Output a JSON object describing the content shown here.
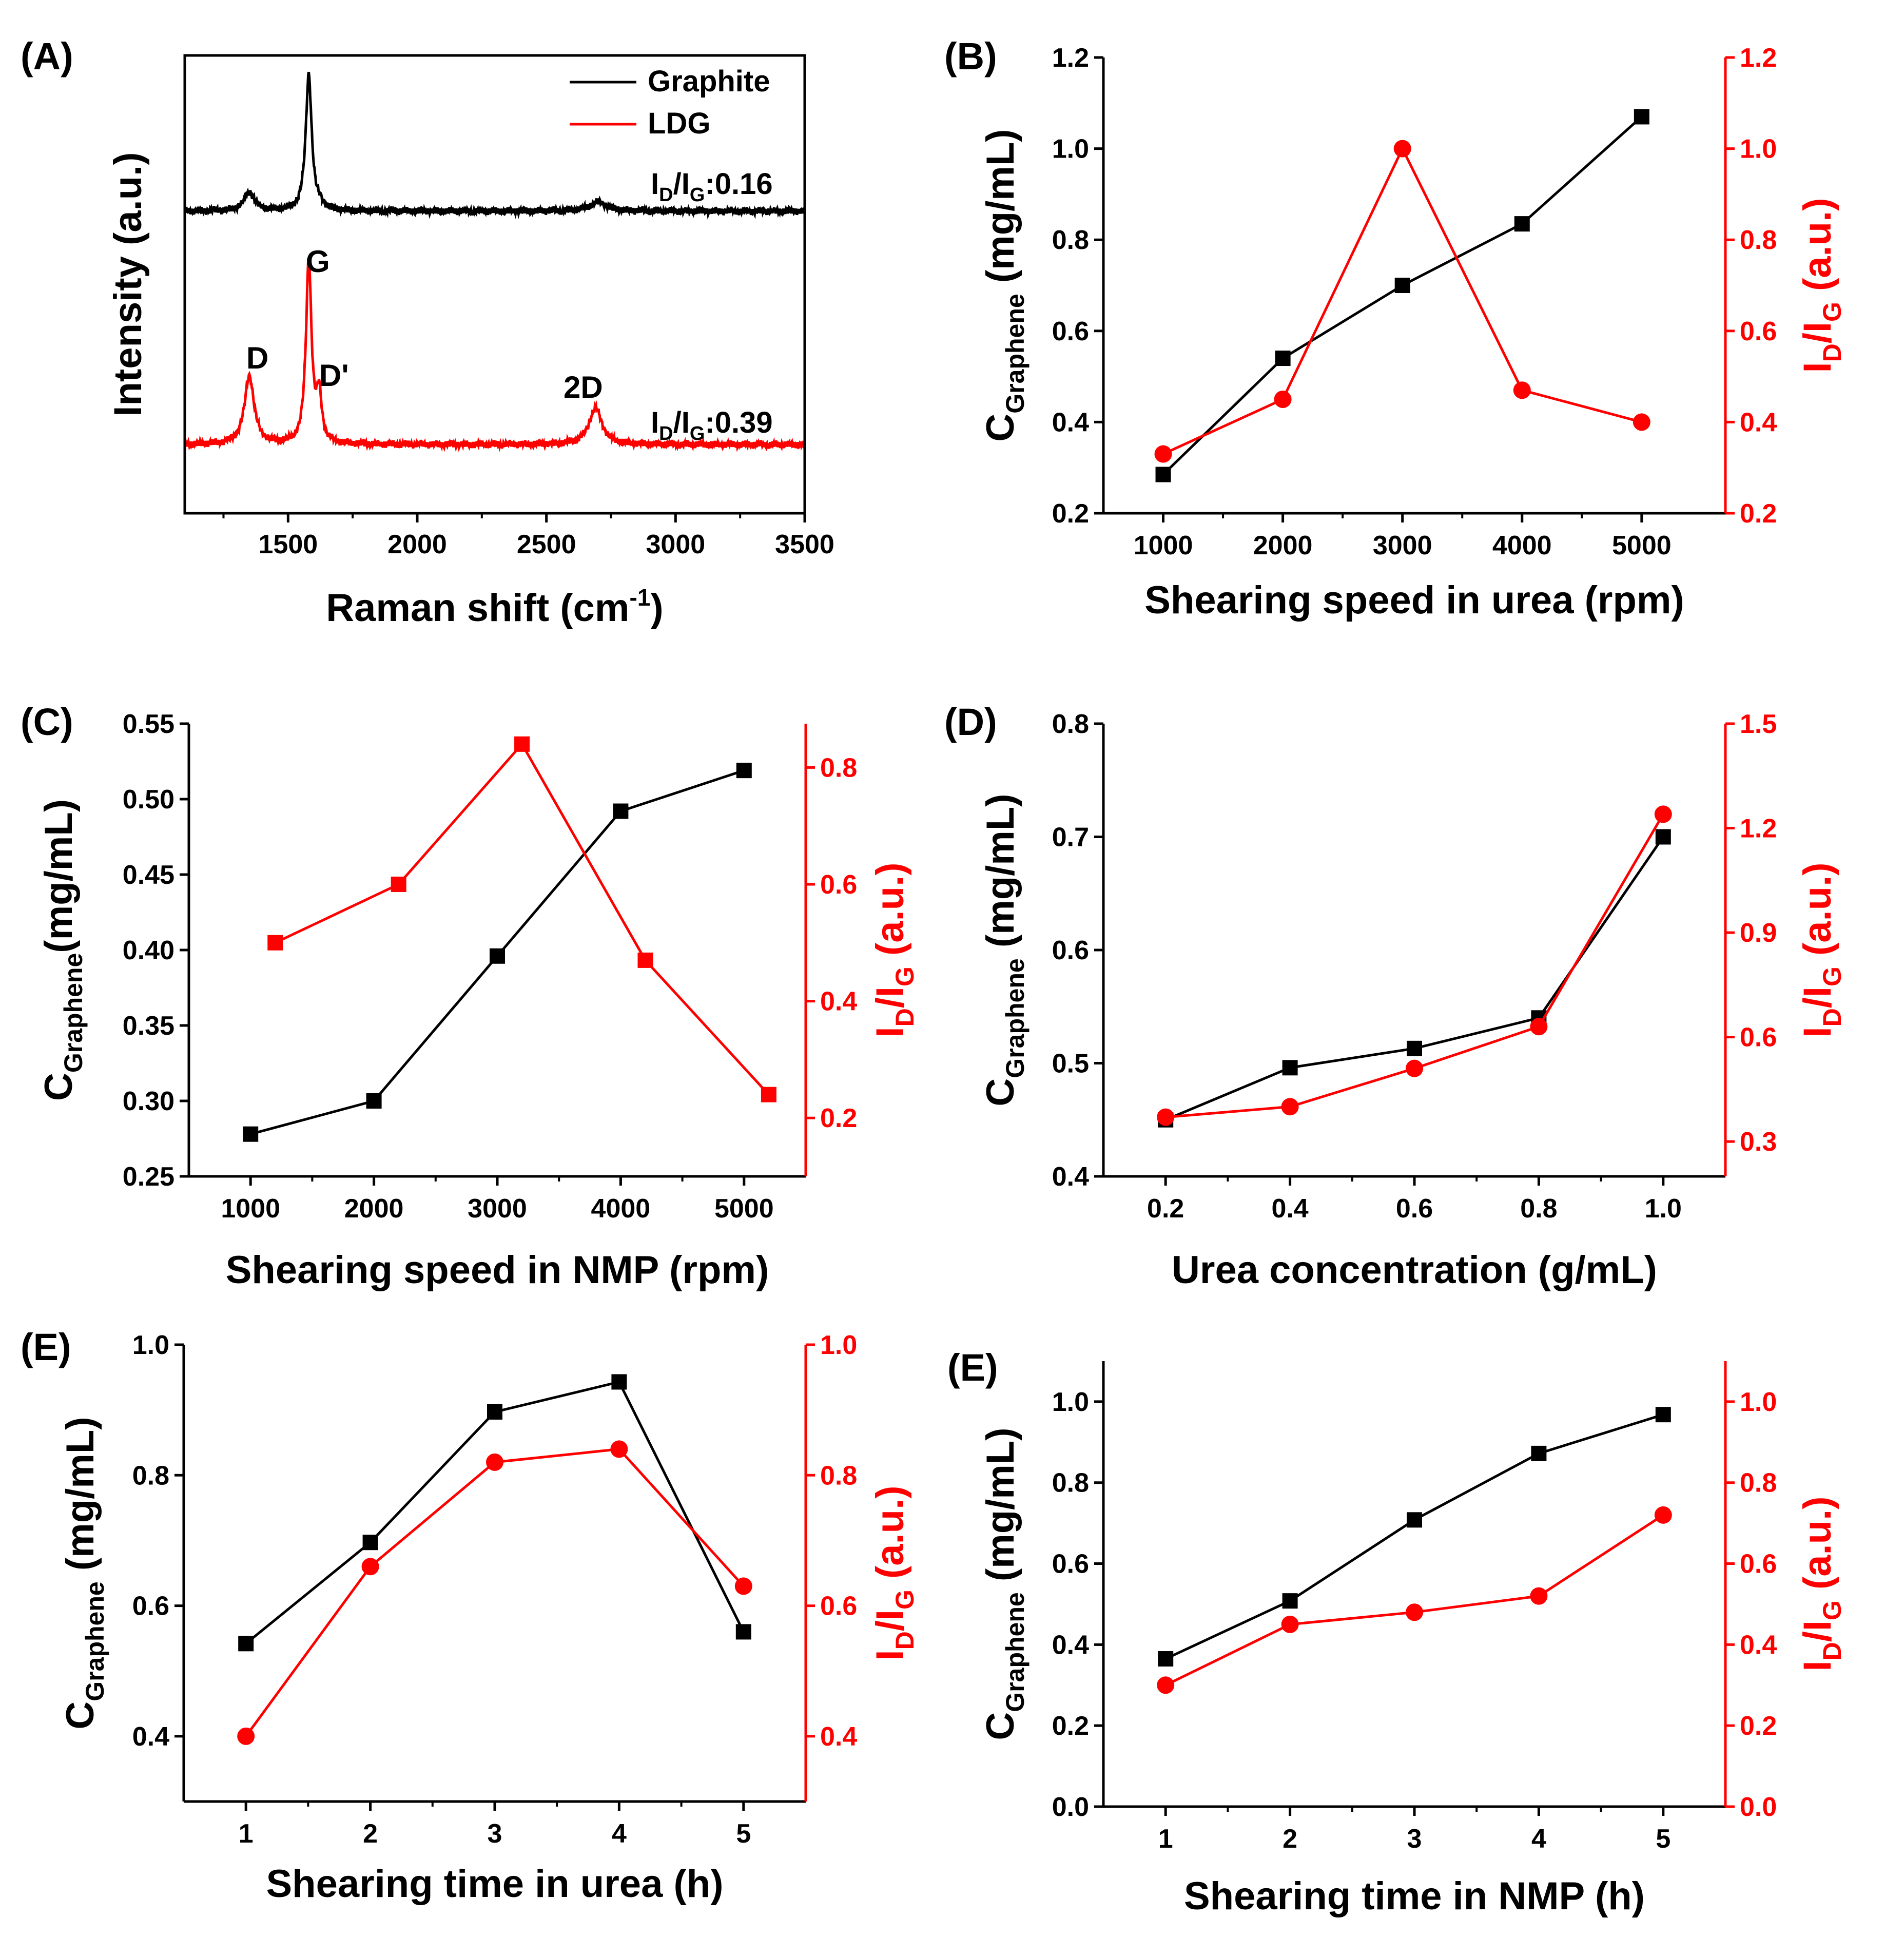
{
  "figure": {
    "background": "#ffffff",
    "black": "#000000",
    "red": "#ff0000"
  },
  "chart_data": [
    {
      "id": "A",
      "type": "line",
      "panel_label": "(A)",
      "xlabel_text": "Raman shift (cm",
      "xlabel_sup": "-1",
      "xlabel_close": ")",
      "ylabel": "Intensity (a.u.)",
      "xlim": [
        1100,
        3500
      ],
      "x_ticks": [
        1500,
        2000,
        2500,
        3000,
        3500
      ],
      "x_tick_labels": [
        "1500",
        "2000",
        "2500",
        "3000",
        "3500"
      ],
      "y_ticks_shown": false,
      "legend": [
        {
          "label": "Graphite",
          "color": "#000000"
        },
        {
          "label": "LDG",
          "color": "#ff0000"
        }
      ],
      "annotations": {
        "ratio_prefix": "I",
        "ratio_sub_d": "D",
        "ratio_slash": "/I",
        "ratio_sub_g": "G",
        "graphite_ratio_value": ":0.16",
        "ldg_ratio_value": ":0.39",
        "peak_D": "D",
        "peak_G": "G",
        "peak_Dprime": "D'",
        "peak_2D": "2D"
      },
      "spectra": [
        {
          "name": "Graphite",
          "color": "#000000",
          "baseline": 0.66,
          "peaks": [
            {
              "center": 1350,
              "height": 0.04,
              "width": 25
            },
            {
              "center": 1580,
              "height": 0.3,
              "width": 14
            },
            {
              "center": 1625,
              "height": 0.01,
              "width": 12
            },
            {
              "center": 2700,
              "height": 0.02,
              "width": 40
            }
          ]
        },
        {
          "name": "LDG",
          "color": "#ff0000",
          "baseline": 0.15,
          "peaks": [
            {
              "center": 1350,
              "height": 0.15,
              "width": 22
            },
            {
              "center": 1580,
              "height": 0.4,
              "width": 13
            },
            {
              "center": 1620,
              "height": 0.1,
              "width": 12
            },
            {
              "center": 2690,
              "height": 0.08,
              "width": 30
            }
          ]
        }
      ]
    },
    {
      "id": "B",
      "type": "line",
      "panel_label": "(B)",
      "xlabel": "Shearing speed in urea (rpm)",
      "ylabel_left_main": "C",
      "ylabel_left_sub": "Graphene",
      "ylabel_left_unit": " (mg/mL)",
      "ylabel_right_pre": "I",
      "ylabel_right_sub_d": "D",
      "ylabel_right_mid": "/I",
      "ylabel_right_sub_g": "G",
      "ylabel_right_unit": " (a.u.)",
      "xlim": [
        500,
        5700
      ],
      "x_ticks": [
        1000,
        2000,
        3000,
        4000,
        5000
      ],
      "x_tick_labels": [
        "1000",
        "2000",
        "3000",
        "4000",
        "5000"
      ],
      "left": {
        "lim": [
          0.2,
          1.2
        ],
        "ticks": [
          0.2,
          0.4,
          0.6,
          0.8,
          1.0,
          1.2
        ],
        "labels": [
          "0.2",
          "0.4",
          "0.6",
          "0.8",
          "1.0",
          "1.2"
        ]
      },
      "right": {
        "lim": [
          0.2,
          1.2
        ],
        "ticks": [
          0.2,
          0.4,
          0.6,
          0.8,
          1.0,
          1.2
        ],
        "labels": [
          "0.2",
          "0.4",
          "0.6",
          "0.8",
          "1.0",
          "1.2"
        ]
      },
      "series": [
        {
          "name": "C_Graphene",
          "axis": "left",
          "color": "#000000",
          "marker": "square",
          "x": [
            1000,
            2000,
            3000,
            4000,
            5000
          ],
          "values": [
            0.285,
            0.54,
            0.7,
            0.835,
            1.07
          ]
        },
        {
          "name": "ID/IG",
          "axis": "right",
          "color": "#ff0000",
          "marker": "circle",
          "x": [
            1000,
            2000,
            3000,
            4000,
            5000
          ],
          "values": [
            0.33,
            0.45,
            1.0,
            0.47,
            0.4
          ]
        }
      ]
    },
    {
      "id": "C",
      "type": "line",
      "panel_label": "(C)",
      "xlabel": "Shearing speed in NMP (rpm)",
      "ylabel_left_main": "C",
      "ylabel_left_sub": "Graphene",
      "ylabel_left_unit": "(mg/mL)",
      "ylabel_right_pre": "I",
      "ylabel_right_sub_d": "D",
      "ylabel_right_mid": "/I",
      "ylabel_right_sub_g": "G",
      "ylabel_right_unit": " (a.u.)",
      "xlim": [
        500,
        5500
      ],
      "x_ticks": [
        1000,
        2000,
        3000,
        4000,
        5000
      ],
      "x_tick_labels": [
        "1000",
        "2000",
        "3000",
        "4000",
        "5000"
      ],
      "left": {
        "lim": [
          0.25,
          0.55
        ],
        "ticks": [
          0.25,
          0.3,
          0.35,
          0.4,
          0.45,
          0.5,
          0.55
        ],
        "labels": [
          "0.25",
          "0.30",
          "0.35",
          "0.40",
          "0.45",
          "0.50",
          "0.55"
        ]
      },
      "right": {
        "lim": [
          0.1,
          0.875
        ],
        "ticks": [
          0.2,
          0.4,
          0.6,
          0.8
        ],
        "labels": [
          "0.2",
          "0.4",
          "0.6",
          "0.8"
        ]
      },
      "series": [
        {
          "name": "C_Graphene",
          "axis": "left",
          "color": "#000000",
          "marker": "square",
          "x": [
            1000,
            2000,
            3000,
            4000,
            5000
          ],
          "values": [
            0.278,
            0.3,
            0.396,
            0.492,
            0.519
          ]
        },
        {
          "name": "ID/IG",
          "axis": "right",
          "color": "#ff0000",
          "marker": "square",
          "x": [
            1200,
            2200,
            3200,
            4200,
            5200
          ],
          "values": [
            0.5,
            0.6,
            0.84,
            0.47,
            0.24
          ]
        }
      ]
    },
    {
      "id": "D",
      "type": "line",
      "panel_label": "(D)",
      "xlabel": "Urea concentration (g/mL)",
      "ylabel_left_main": "C",
      "ylabel_left_sub": "Graphene",
      "ylabel_left_unit": " (mg/mL)",
      "ylabel_right_pre": "I",
      "ylabel_right_sub_d": "D",
      "ylabel_right_mid": "/I",
      "ylabel_right_sub_g": "G",
      "ylabel_right_unit": " (a.u.)",
      "xlim": [
        0.1,
        1.1
      ],
      "x_ticks": [
        0.2,
        0.4,
        0.6,
        0.8,
        1.0
      ],
      "x_tick_labels": [
        "0.2",
        "0.4",
        "0.6",
        "0.8",
        "1.0"
      ],
      "left": {
        "lim": [
          0.4,
          0.8
        ],
        "ticks": [
          0.4,
          0.5,
          0.6,
          0.7,
          0.8
        ],
        "labels": [
          "0.4",
          "0.5",
          "0.6",
          "0.7",
          "0.8"
        ]
      },
      "right": {
        "lim": [
          0.2,
          1.5
        ],
        "ticks": [
          0.3,
          0.6,
          0.9,
          1.2,
          1.5
        ],
        "labels": [
          "0.3",
          "0.6",
          "0.9",
          "1.2",
          "1.5"
        ]
      },
      "series": [
        {
          "name": "C_Graphene",
          "axis": "left",
          "color": "#000000",
          "marker": "square",
          "x": [
            0.2,
            0.4,
            0.6,
            0.8,
            1.0
          ],
          "values": [
            0.45,
            0.496,
            0.513,
            0.54,
            0.7
          ]
        },
        {
          "name": "ID/IG",
          "axis": "right",
          "color": "#ff0000",
          "marker": "circle",
          "x": [
            0.2,
            0.4,
            0.6,
            0.8,
            1.0
          ],
          "values": [
            0.37,
            0.4,
            0.51,
            0.63,
            1.24
          ]
        }
      ]
    },
    {
      "id": "E1",
      "type": "line",
      "panel_label": "(E)",
      "xlabel": "Shearing time in urea (h)",
      "ylabel_left_main": "C",
      "ylabel_left_sub": "Graphene",
      "ylabel_left_unit": " (mg/mL)",
      "ylabel_right_pre": "I",
      "ylabel_right_sub_d": "D",
      "ylabel_right_mid": "/I",
      "ylabel_right_sub_g": "G",
      "ylabel_right_unit": " (a.u.)",
      "xlim": [
        0.5,
        5.5
      ],
      "x_ticks": [
        1,
        2,
        3,
        4,
        5
      ],
      "x_tick_labels": [
        "1",
        "2",
        "3",
        "4",
        "5"
      ],
      "left": {
        "lim": [
          0.3,
          1.0
        ],
        "ticks": [
          0.4,
          0.6,
          0.8,
          1.0
        ],
        "labels": [
          "0.4",
          "0.6",
          "0.8",
          "1.0"
        ]
      },
      "right": {
        "lim": [
          0.3,
          1.0
        ],
        "ticks": [
          0.4,
          0.6,
          0.8,
          1.0
        ],
        "labels": [
          "0.4",
          "0.6",
          "0.8",
          "1.0"
        ]
      },
      "series": [
        {
          "name": "C_Graphene",
          "axis": "left",
          "color": "#000000",
          "marker": "square",
          "x": [
            1,
            2,
            3,
            4,
            5
          ],
          "values": [
            0.542,
            0.697,
            0.897,
            0.943,
            0.56
          ]
        },
        {
          "name": "ID/IG",
          "axis": "right",
          "color": "#ff0000",
          "marker": "circle",
          "x": [
            1,
            2,
            3,
            4,
            5
          ],
          "values": [
            0.4,
            0.66,
            0.82,
            0.84,
            0.63
          ]
        }
      ]
    },
    {
      "id": "E2",
      "type": "line",
      "panel_label": "(E)",
      "xlabel": "Shearing time in NMP (h)",
      "ylabel_left_main": "C",
      "ylabel_left_sub": "Graphene",
      "ylabel_left_unit": " (mg/mL)",
      "ylabel_right_pre": "I",
      "ylabel_right_sub_d": "D",
      "ylabel_right_mid": "/I",
      "ylabel_right_sub_g": "G",
      "ylabel_right_unit": " (a.u.)",
      "xlim": [
        0.5,
        5.5
      ],
      "x_ticks": [
        1,
        2,
        3,
        4,
        5
      ],
      "x_tick_labels": [
        "1",
        "2",
        "3",
        "4",
        "5"
      ],
      "left": {
        "lim": [
          0.0,
          1.1
        ],
        "ticks": [
          0.0,
          0.2,
          0.4,
          0.6,
          0.8,
          1.0
        ],
        "labels": [
          "0.0",
          "0.2",
          "0.4",
          "0.6",
          "0.8",
          "1.0"
        ]
      },
      "right": {
        "lim": [
          0.0,
          1.1
        ],
        "ticks": [
          0.0,
          0.2,
          0.4,
          0.6,
          0.8,
          1.0
        ],
        "labels": [
          "0.0",
          "0.2",
          "0.4",
          "0.6",
          "0.8",
          "1.0"
        ]
      },
      "series": [
        {
          "name": "C_Graphene",
          "axis": "left",
          "color": "#000000",
          "marker": "square",
          "x": [
            1,
            2,
            3,
            4,
            5
          ],
          "values": [
            0.365,
            0.508,
            0.708,
            0.872,
            0.968
          ]
        },
        {
          "name": "ID/IG",
          "axis": "right",
          "color": "#ff0000",
          "marker": "circle",
          "x": [
            1,
            2,
            3,
            4,
            5
          ],
          "values": [
            0.3,
            0.45,
            0.48,
            0.52,
            0.72
          ]
        }
      ]
    }
  ]
}
